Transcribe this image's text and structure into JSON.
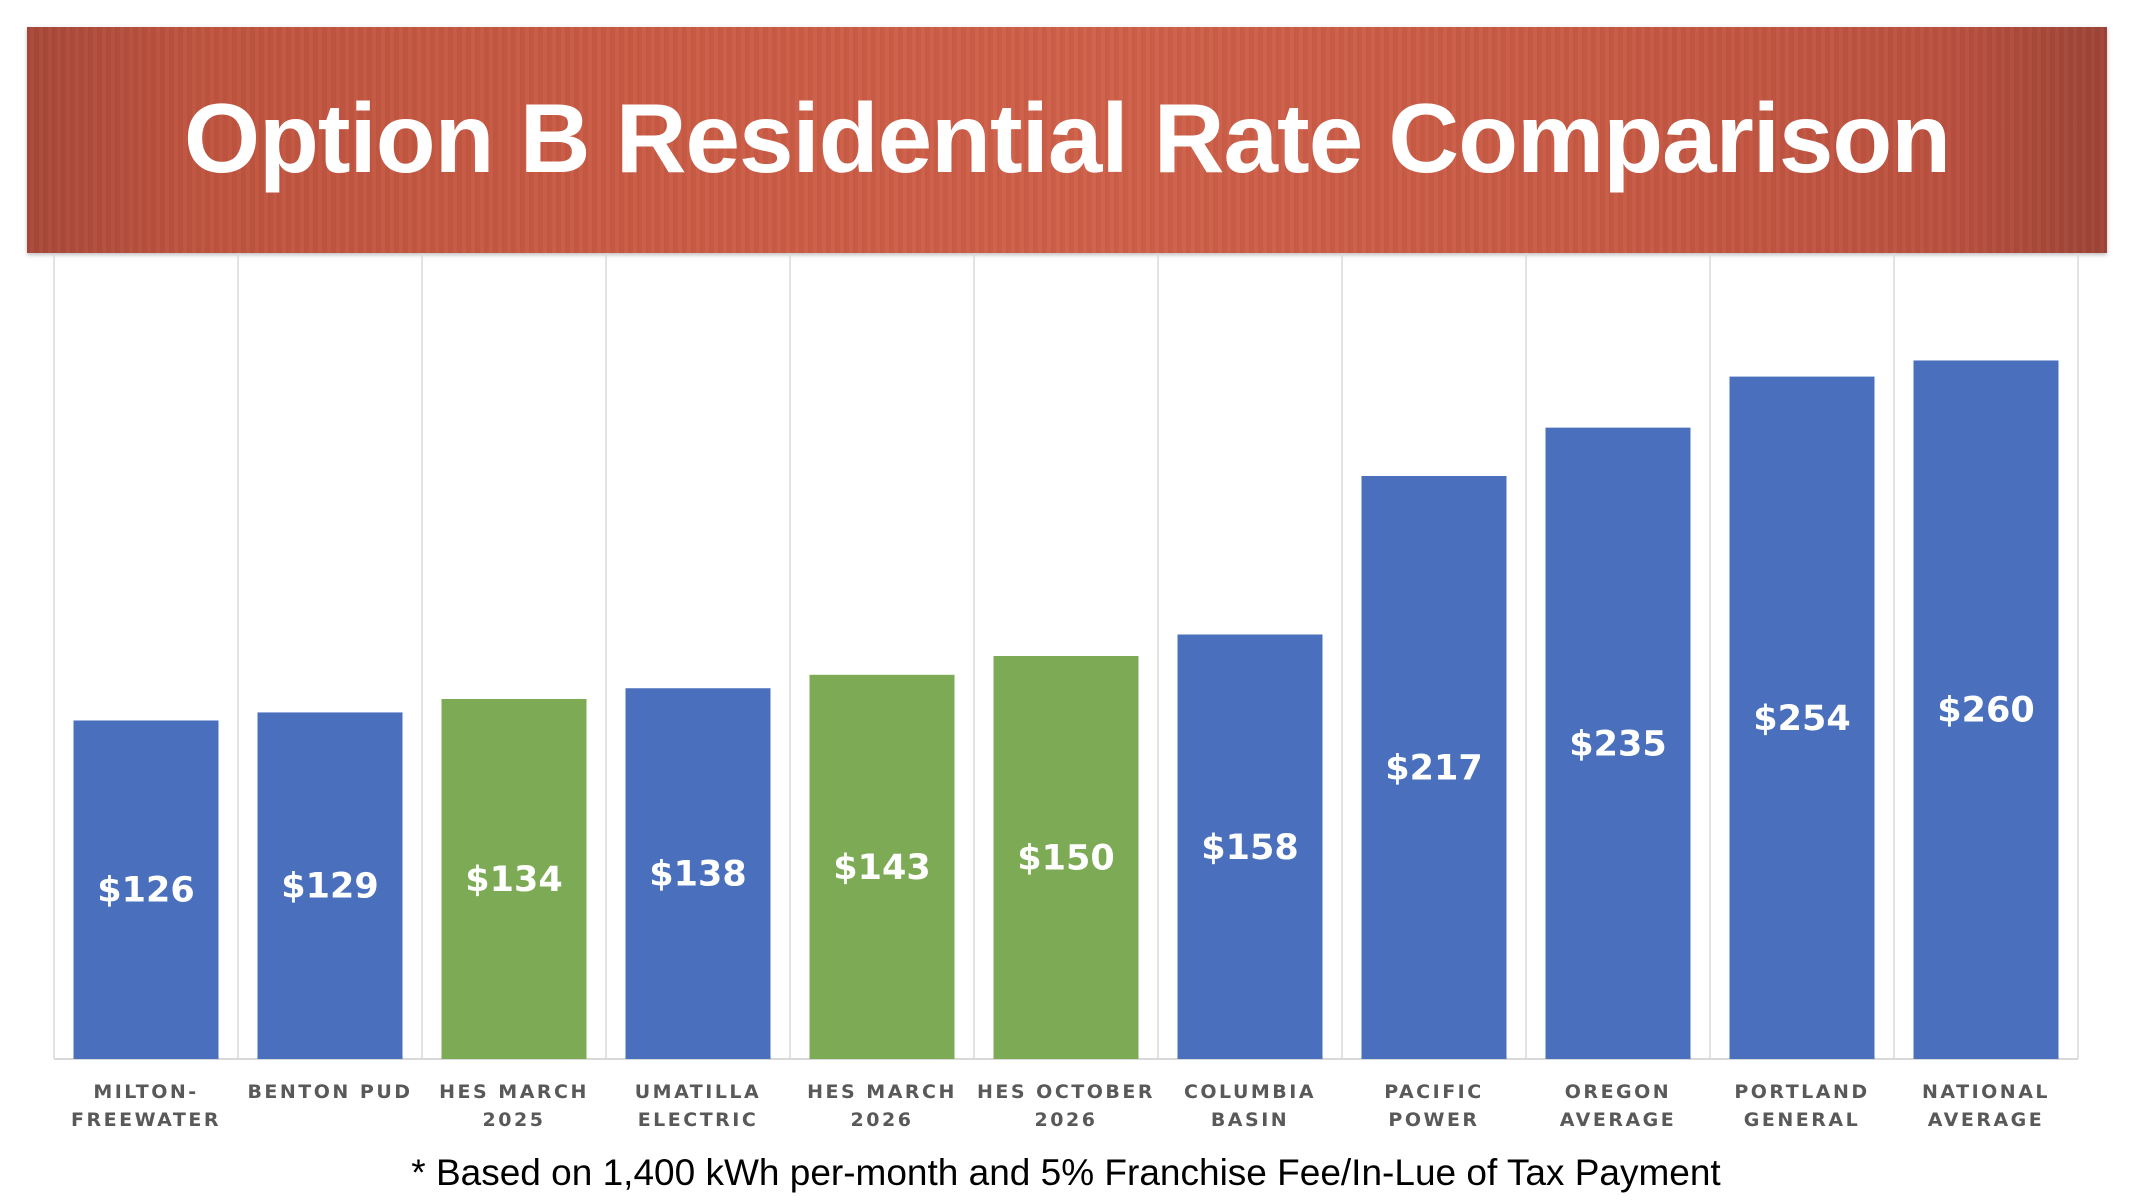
{
  "title": "Option B Residential Rate Comparison",
  "footnote": "* Based on 1,400 kWh per-month and 5% Franchise Fee/In-Lue of Tax Payment",
  "colors": {
    "header": "#C95B45",
    "blue": "#4A70BD",
    "green": "#7DAB55",
    "grid": "#D9D9D9",
    "label": "#595959"
  },
  "chart_data": {
    "type": "bar",
    "title": "Option B Residential Rate Comparison",
    "categories": [
      [
        "MILTON-",
        "FREEWATER"
      ],
      [
        "BENTON PUD"
      ],
      [
        "HES MARCH",
        "2025"
      ],
      [
        "UMATILLA",
        "ELECTRIC"
      ],
      [
        "HES MARCH",
        "2026"
      ],
      [
        "HES OCTOBER",
        "2026"
      ],
      [
        "COLUMBIA",
        "BASIN"
      ],
      [
        "PACIFIC",
        "POWER"
      ],
      [
        "OREGON",
        "AVERAGE"
      ],
      [
        "PORTLAND",
        "GENERAL"
      ],
      [
        "NATIONAL",
        "AVERAGE"
      ]
    ],
    "values": [
      126,
      129,
      134,
      138,
      143,
      150,
      158,
      217,
      235,
      254,
      260
    ],
    "data_labels": [
      "$126",
      "$129",
      "$134",
      "$138",
      "$143",
      "$150",
      "$158",
      "$217",
      "$235",
      "$254",
      "$260"
    ],
    "bar_colors": [
      "blue",
      "blue",
      "green",
      "blue",
      "green",
      "green",
      "blue",
      "blue",
      "blue",
      "blue",
      "blue"
    ],
    "ylim": [
      0,
      300
    ],
    "xlabel": "",
    "ylabel": "",
    "grid": "vertical category separators",
    "legend": "none"
  }
}
